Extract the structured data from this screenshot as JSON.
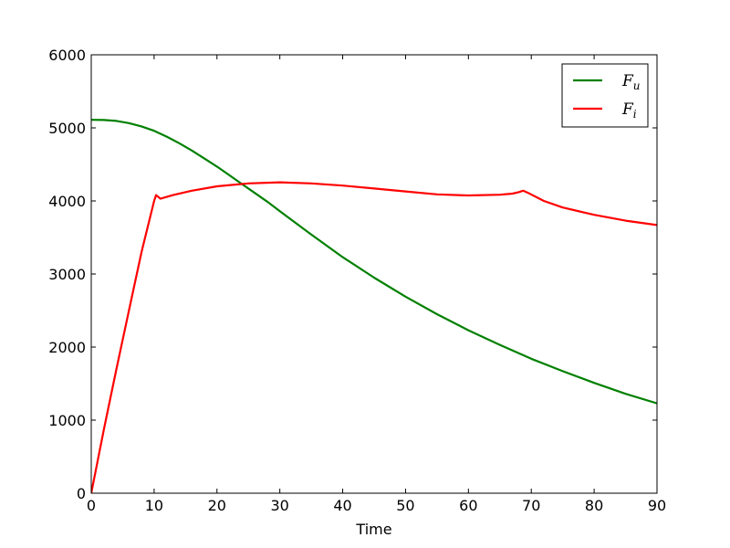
{
  "chart_data": {
    "type": "line",
    "title": "",
    "xlabel": "Time",
    "ylabel": "",
    "xlim": [
      0,
      90
    ],
    "ylim": [
      0,
      6000
    ],
    "xticks": [
      0,
      10,
      20,
      30,
      40,
      50,
      60,
      70,
      80,
      90
    ],
    "yticks": [
      0,
      1000,
      2000,
      3000,
      4000,
      5000,
      6000
    ],
    "grid": false,
    "legend_position": "top-right",
    "series": [
      {
        "name": "F",
        "subscript": "u",
        "color": "#008000",
        "x": [
          0,
          2,
          4,
          6,
          8,
          10,
          12,
          14,
          16,
          18,
          20,
          22,
          24,
          26,
          28,
          30,
          35,
          40,
          45,
          50,
          55,
          60,
          65,
          70,
          75,
          80,
          85,
          90
        ],
        "y": [
          5110,
          5108,
          5095,
          5065,
          5020,
          4960,
          4880,
          4790,
          4690,
          4580,
          4470,
          4350,
          4230,
          4110,
          3990,
          3860,
          3540,
          3230,
          2950,
          2690,
          2450,
          2230,
          2030,
          1840,
          1670,
          1510,
          1360,
          1230
        ]
      },
      {
        "name": "F",
        "subscript": "i",
        "color": "#ff0000",
        "x": [
          0,
          2,
          4,
          6,
          8,
          10,
          10.3,
          10.6,
          11,
          13,
          16,
          20,
          25,
          30,
          35,
          40,
          45,
          50,
          55,
          60,
          65,
          67,
          68,
          68.7,
          69.5,
          72,
          75,
          80,
          85,
          90
        ],
        "y": [
          0,
          870,
          1700,
          2500,
          3300,
          4000,
          4080,
          4060,
          4030,
          4080,
          4140,
          4200,
          4240,
          4255,
          4240,
          4210,
          4170,
          4130,
          4090,
          4075,
          4085,
          4100,
          4120,
          4140,
          4110,
          4000,
          3910,
          3810,
          3730,
          3670
        ]
      }
    ]
  }
}
